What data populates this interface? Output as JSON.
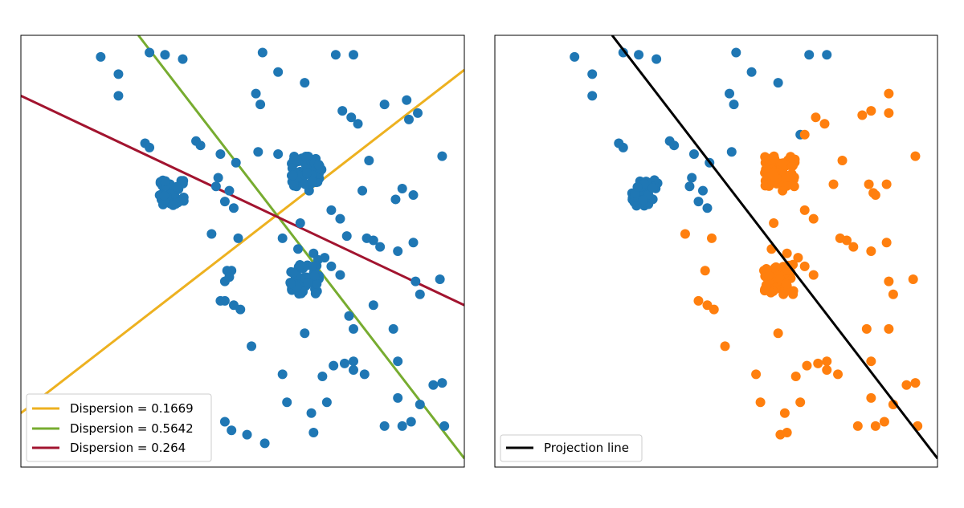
{
  "chart_data": [
    {
      "type": "scatter",
      "title": "",
      "xlabel": "",
      "ylabel": "",
      "xlim": [
        0,
        10
      ],
      "ylim": [
        0,
        10
      ],
      "grid": false,
      "axes_ticks": false,
      "legend_position": "lower-left",
      "colors": {
        "points": "#1f77b4",
        "yellow": "#edb120",
        "green": "#77ac30",
        "red": "#a2142f"
      },
      "series": [
        {
          "name": "",
          "color": "#1f77b4",
          "points": [
            [
              1.8,
              9.5
            ],
            [
              2.2,
              9.1
            ],
            [
              2.2,
              8.6
            ],
            [
              2.9,
              9.6
            ],
            [
              3.25,
              9.55
            ],
            [
              3.65,
              9.45
            ],
            [
              5.45,
              9.6
            ],
            [
              5.8,
              9.15
            ],
            [
              7.1,
              9.55
            ],
            [
              7.5,
              9.55
            ],
            [
              5.3,
              8.65
            ],
            [
              5.4,
              8.4
            ],
            [
              6.4,
              8.9
            ],
            [
              7.25,
              8.25
            ],
            [
              7.45,
              8.1
            ],
            [
              7.6,
              7.95
            ],
            [
              8.2,
              8.4
            ],
            [
              8.7,
              8.5
            ],
            [
              8.95,
              8.2
            ],
            [
              8.75,
              8.05
            ],
            [
              2.8,
              7.5
            ],
            [
              2.9,
              7.4
            ],
            [
              3.95,
              7.55
            ],
            [
              4.05,
              7.45
            ],
            [
              4.5,
              7.25
            ],
            [
              4.85,
              7.05
            ],
            [
              5.35,
              7.3
            ],
            [
              5.8,
              7.25
            ],
            [
              7.85,
              7.1
            ],
            [
              9.5,
              7.2
            ],
            [
              4.45,
              6.7
            ],
            [
              4.4,
              6.5
            ],
            [
              4.7,
              6.4
            ],
            [
              4.6,
              6.15
            ],
            [
              4.8,
              6.0
            ],
            [
              6.5,
              6.4
            ],
            [
              7.7,
              6.4
            ],
            [
              8.6,
              6.45
            ],
            [
              8.85,
              6.3
            ],
            [
              8.45,
              6.2
            ],
            [
              7.0,
              5.95
            ],
            [
              7.2,
              5.75
            ],
            [
              7.35,
              5.35
            ],
            [
              7.8,
              5.3
            ],
            [
              7.95,
              5.25
            ],
            [
              8.1,
              5.1
            ],
            [
              8.5,
              5.0
            ],
            [
              8.85,
              5.2
            ],
            [
              6.3,
              5.65
            ],
            [
              5.9,
              5.3
            ],
            [
              4.3,
              5.4
            ],
            [
              4.9,
              5.3
            ],
            [
              6.25,
              5.05
            ],
            [
              6.6,
              4.95
            ],
            [
              6.85,
              4.85
            ],
            [
              6.7,
              4.8
            ],
            [
              7.0,
              4.65
            ],
            [
              7.2,
              4.45
            ],
            [
              4.75,
              4.55
            ],
            [
              4.6,
              4.3
            ],
            [
              4.65,
              4.55
            ],
            [
              4.7,
              4.4
            ],
            [
              8.9,
              4.3
            ],
            [
              9.0,
              4.0
            ],
            [
              9.45,
              4.35
            ],
            [
              4.6,
              3.85
            ],
            [
              4.8,
              3.75
            ],
            [
              4.95,
              3.65
            ],
            [
              4.5,
              3.85
            ],
            [
              7.95,
              3.75
            ],
            [
              7.4,
              3.5
            ],
            [
              7.5,
              3.2
            ],
            [
              8.4,
              3.2
            ],
            [
              6.4,
              3.1
            ],
            [
              5.2,
              2.8
            ],
            [
              7.05,
              2.35
            ],
            [
              7.3,
              2.4
            ],
            [
              7.5,
              2.45
            ],
            [
              7.5,
              2.25
            ],
            [
              7.75,
              2.15
            ],
            [
              6.8,
              2.1
            ],
            [
              5.9,
              2.15
            ],
            [
              8.5,
              2.45
            ],
            [
              9.3,
              1.9
            ],
            [
              9.5,
              1.95
            ],
            [
              6.0,
              1.5
            ],
            [
              6.9,
              1.5
            ],
            [
              8.5,
              1.6
            ],
            [
              9.0,
              1.45
            ],
            [
              8.8,
              1.05
            ],
            [
              9.55,
              0.95
            ],
            [
              6.55,
              1.25
            ],
            [
              6.6,
              0.8
            ],
            [
              8.2,
              0.95
            ],
            [
              8.6,
              0.95
            ],
            [
              3.45,
              1.4
            ],
            [
              4.6,
              1.05
            ],
            [
              4.75,
              0.85
            ],
            [
              5.1,
              0.75
            ],
            [
              5.5,
              0.55
            ]
          ],
          "clusters": [
            {
              "center": [
                3.4,
                6.35
              ],
              "count": 45,
              "spread": [
                0.3,
                0.3
              ]
            },
            {
              "center": [
                6.45,
                6.85
              ],
              "count": 55,
              "spread": [
                0.35,
                0.35
              ]
            },
            {
              "center": [
                6.4,
                4.35
              ],
              "count": 55,
              "spread": [
                0.35,
                0.35
              ]
            }
          ]
        }
      ],
      "lines": [
        {
          "name": "Dispersion = 0.1669",
          "color": "#edb120",
          "from": [
            0,
            1.25
          ],
          "to": [
            10,
            9.2
          ]
        },
        {
          "name": "Dispersion = 0.5642",
          "color": "#77ac30",
          "from": [
            2.65,
            10
          ],
          "to": [
            10,
            0.2
          ]
        },
        {
          "name": "Dispersion = 0.264",
          "color": "#a2142f",
          "from": [
            0,
            8.6
          ],
          "to": [
            10,
            3.75
          ]
        }
      ],
      "legend": [
        "Dispersion = 0.1669",
        "Dispersion = 0.5642",
        "Dispersion = 0.264"
      ]
    },
    {
      "type": "scatter",
      "title": "",
      "xlabel": "",
      "ylabel": "",
      "xlim": [
        0,
        10
      ],
      "ylim": [
        0,
        10
      ],
      "grid": false,
      "axes_ticks": false,
      "legend_position": "lower-left",
      "colors": {
        "class_a": "#1f77b4",
        "class_b": "#ff7f0e",
        "projection": "#000000"
      },
      "series": [
        {
          "name": "",
          "color": "#1f77b4",
          "points": [
            [
              1.8,
              9.5
            ],
            [
              2.2,
              9.1
            ],
            [
              2.2,
              8.6
            ],
            [
              2.9,
              9.6
            ],
            [
              3.25,
              9.55
            ],
            [
              3.65,
              9.45
            ],
            [
              5.45,
              9.6
            ],
            [
              5.8,
              9.15
            ],
            [
              7.1,
              9.55
            ],
            [
              7.5,
              9.55
            ],
            [
              5.3,
              8.65
            ],
            [
              5.4,
              8.4
            ],
            [
              6.4,
              8.9
            ],
            [
              2.8,
              7.5
            ],
            [
              2.9,
              7.4
            ],
            [
              3.95,
              7.55
            ],
            [
              4.05,
              7.45
            ],
            [
              4.5,
              7.25
            ],
            [
              4.85,
              7.05
            ],
            [
              5.35,
              7.3
            ],
            [
              4.45,
              6.7
            ],
            [
              4.4,
              6.5
            ],
            [
              4.7,
              6.4
            ],
            [
              4.6,
              6.15
            ],
            [
              4.8,
              6.0
            ],
            [
              6.9,
              7.7
            ]
          ],
          "clusters": [
            {
              "center": [
                3.4,
                6.35
              ],
              "count": 45,
              "spread": [
                0.3,
                0.3
              ]
            }
          ]
        },
        {
          "name": "",
          "color": "#ff7f0e",
          "points": [
            [
              8.9,
              8.65
            ],
            [
              8.5,
              8.25
            ],
            [
              8.9,
              8.2
            ],
            [
              8.3,
              8.15
            ],
            [
              7.25,
              8.1
            ],
            [
              7.45,
              7.95
            ],
            [
              7.0,
              7.7
            ],
            [
              9.5,
              7.2
            ],
            [
              7.85,
              7.1
            ],
            [
              7.65,
              6.55
            ],
            [
              8.45,
              6.55
            ],
            [
              8.55,
              6.35
            ],
            [
              8.85,
              6.55
            ],
            [
              8.6,
              6.3
            ],
            [
              6.5,
              6.4
            ],
            [
              7.0,
              5.95
            ],
            [
              7.2,
              5.75
            ],
            [
              6.3,
              5.65
            ],
            [
              7.8,
              5.3
            ],
            [
              7.95,
              5.25
            ],
            [
              8.1,
              5.1
            ],
            [
              8.5,
              5.0
            ],
            [
              8.85,
              5.2
            ],
            [
              6.6,
              4.95
            ],
            [
              6.85,
              4.85
            ],
            [
              7.0,
              4.65
            ],
            [
              7.2,
              4.45
            ],
            [
              4.3,
              5.4
            ],
            [
              4.9,
              5.3
            ],
            [
              6.25,
              5.05
            ],
            [
              4.75,
              4.55
            ],
            [
              8.9,
              4.3
            ],
            [
              9.0,
              4.0
            ],
            [
              9.45,
              4.35
            ],
            [
              4.6,
              3.85
            ],
            [
              4.8,
              3.75
            ],
            [
              4.95,
              3.65
            ],
            [
              8.4,
              3.2
            ],
            [
              8.9,
              3.2
            ],
            [
              6.4,
              3.1
            ],
            [
              5.2,
              2.8
            ],
            [
              7.05,
              2.35
            ],
            [
              7.3,
              2.4
            ],
            [
              7.5,
              2.45
            ],
            [
              7.5,
              2.25
            ],
            [
              7.75,
              2.15
            ],
            [
              6.8,
              2.1
            ],
            [
              5.9,
              2.15
            ],
            [
              8.5,
              2.45
            ],
            [
              9.3,
              1.9
            ],
            [
              9.5,
              1.95
            ],
            [
              6.0,
              1.5
            ],
            [
              6.9,
              1.5
            ],
            [
              8.5,
              1.6
            ],
            [
              9.0,
              1.45
            ],
            [
              8.8,
              1.05
            ],
            [
              9.55,
              0.95
            ],
            [
              6.55,
              1.25
            ],
            [
              6.6,
              0.8
            ],
            [
              8.2,
              0.95
            ],
            [
              8.6,
              0.95
            ],
            [
              6.45,
              0.75
            ]
          ],
          "clusters": [
            {
              "center": [
                6.45,
                6.85
              ],
              "count": 55,
              "spread": [
                0.35,
                0.35
              ]
            },
            {
              "center": [
                6.4,
                4.35
              ],
              "count": 55,
              "spread": [
                0.35,
                0.35
              ]
            }
          ]
        }
      ],
      "lines": [
        {
          "name": "Projection line",
          "color": "#000000",
          "from": [
            2.65,
            10
          ],
          "to": [
            10,
            0.2
          ]
        }
      ],
      "legend": [
        "Projection line"
      ]
    }
  ]
}
